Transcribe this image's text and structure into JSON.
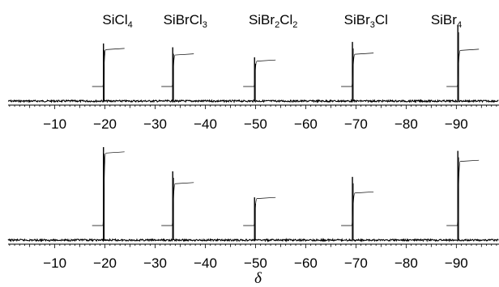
{
  "chart_data": [
    {
      "type": "line",
      "panel": "top",
      "xlim": [
        -0.7,
        -98.5
      ],
      "xticks": [
        -10,
        -20,
        -30,
        -40,
        -50,
        -60,
        -70,
        -80,
        -90
      ],
      "tick_labels": [
        "−10",
        "−20",
        "−30",
        "−40",
        "−50",
        "−60",
        "−70",
        "−80",
        "−90"
      ],
      "xlabel": "",
      "peak_labels": [
        {
          "base": "SiCl",
          "sub": "4",
          "rest": "",
          "sub2": "",
          "x": -22.5
        },
        {
          "base": "SiBrCl",
          "sub": "3",
          "rest": "",
          "sub2": "",
          "x": -36.0
        },
        {
          "base": "SiBr",
          "sub": "2",
          "rest": "Cl",
          "sub2": "2",
          "x": -53.5
        },
        {
          "base": "SiBr",
          "sub": "3",
          "rest": "Cl",
          "sub2": "",
          "x": -72.0
        },
        {
          "base": "SiBr",
          "sub": "4",
          "rest": "",
          "sub2": "",
          "x": -88.0
        }
      ],
      "peaks": [
        {
          "x": -19.7,
          "height": 0.75,
          "integral_step": 0.48
        },
        {
          "x": -33.5,
          "height": 0.7,
          "integral_step": 0.41
        },
        {
          "x": -49.8,
          "height": 0.57,
          "integral_step": 0.33
        },
        {
          "x": -69.3,
          "height": 0.77,
          "integral_step": 0.42
        },
        {
          "x": -90.3,
          "height": 0.98,
          "integral_step": 0.47
        }
      ]
    },
    {
      "type": "line",
      "panel": "bottom",
      "xlim": [
        -0.7,
        -98.5
      ],
      "xticks": [
        -10,
        -20,
        -30,
        -40,
        -50,
        -60,
        -70,
        -80,
        -90
      ],
      "tick_labels": [
        "−10",
        "−20",
        "−30",
        "−40",
        "−50",
        "−60",
        "−70",
        "−80",
        "−90"
      ],
      "xlabel": "δ",
      "peaks": [
        {
          "x": -19.7,
          "height": 1.0,
          "integral_step": 0.78
        },
        {
          "x": -33.5,
          "height": 0.74,
          "integral_step": 0.45
        },
        {
          "x": -49.8,
          "height": 0.46,
          "integral_step": 0.29
        },
        {
          "x": -69.3,
          "height": 0.68,
          "integral_step": 0.35
        },
        {
          "x": -90.3,
          "height": 0.96,
          "integral_step": 0.69
        }
      ]
    }
  ]
}
